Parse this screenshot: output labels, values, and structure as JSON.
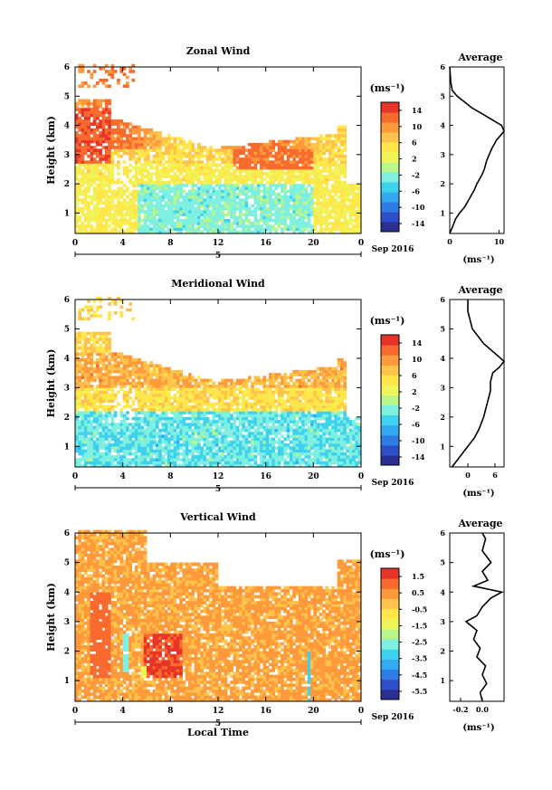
{
  "date_label": "Sep 2016",
  "time_axis_label": "Local Time",
  "day_marker": "5",
  "units_label": "(ms⁻¹)",
  "height_label": "Height (km)",
  "avg_title": "Average",
  "colors": [
    "#2b2f8f",
    "#2c4fc8",
    "#2f7be6",
    "#33a9f0",
    "#3fd2ee",
    "#7ff0e0",
    "#b8f58a",
    "#eef55a",
    "#ffe64a",
    "#ffc24a",
    "#ff9a3c",
    "#f86a2e",
    "#e83428"
  ],
  "chart_data": [
    {
      "type": "heatmap",
      "title": "Zonal Wind",
      "xlabel": "",
      "ylabel": "Height (km)",
      "xlim": [
        0,
        24
      ],
      "ylim": [
        0.3,
        6.0
      ],
      "x_ticks": [
        "0",
        "4",
        "8",
        "12",
        "16",
        "20",
        "0"
      ],
      "y_ticks": [
        "1",
        "2",
        "3",
        "4",
        "5",
        "6"
      ],
      "colorbar": {
        "label": "(ms⁻¹)",
        "min": -16,
        "max": 16,
        "ticks": [
          "14",
          "10",
          "6",
          "2",
          "-2",
          "-6",
          "-10",
          "-14"
        ]
      },
      "average": {
        "title": "Average",
        "xlabel": "(ms⁻¹)",
        "xlim": [
          0,
          11
        ],
        "x_ticks": [
          {
            "v": 0,
            "t": "0"
          },
          {
            "v": 10,
            "t": "10"
          }
        ],
        "profile": [
          [
            0.3,
            0.0
          ],
          [
            0.5,
            0.5
          ],
          [
            0.8,
            1.2
          ],
          [
            1.0,
            2.0
          ],
          [
            1.2,
            3.0
          ],
          [
            1.5,
            4.0
          ],
          [
            1.8,
            5.0
          ],
          [
            2.0,
            5.5
          ],
          [
            2.3,
            6.5
          ],
          [
            2.5,
            7.0
          ],
          [
            2.8,
            7.5
          ],
          [
            3.0,
            8.0
          ],
          [
            3.2,
            8.5
          ],
          [
            3.5,
            9.5
          ],
          [
            3.8,
            11.0
          ],
          [
            4.0,
            10.5
          ],
          [
            4.2,
            8.5
          ],
          [
            4.4,
            6.5
          ],
          [
            4.6,
            4.5
          ],
          [
            4.8,
            3.0
          ],
          [
            5.0,
            1.5
          ],
          [
            5.2,
            0.5
          ],
          [
            5.5,
            0.2
          ],
          [
            6.0,
            0.0
          ]
        ]
      }
    },
    {
      "type": "heatmap",
      "title": "Meridional Wind",
      "xlabel": "",
      "ylabel": "Height (km)",
      "xlim": [
        0,
        24
      ],
      "ylim": [
        0.3,
        6.0
      ],
      "x_ticks": [
        "0",
        "4",
        "8",
        "12",
        "16",
        "20",
        "0"
      ],
      "y_ticks": [
        "1",
        "2",
        "3",
        "4",
        "5",
        "6"
      ],
      "colorbar": {
        "label": "(ms⁻¹)",
        "min": -16,
        "max": 16,
        "ticks": [
          "14",
          "10",
          "6",
          "2",
          "-2",
          "-6",
          "-10",
          "-14"
        ]
      },
      "average": {
        "title": "Average",
        "xlabel": "(ms⁻¹)",
        "xlim": [
          -4,
          8
        ],
        "x_ticks": [
          {
            "v": 0,
            "t": "0"
          },
          {
            "v": 6,
            "t": "6"
          }
        ],
        "profile": [
          [
            0.3,
            -3.5
          ],
          [
            0.5,
            -2.5
          ],
          [
            0.8,
            -1.0
          ],
          [
            1.0,
            0.0
          ],
          [
            1.3,
            1.5
          ],
          [
            1.6,
            2.5
          ],
          [
            2.0,
            3.5
          ],
          [
            2.3,
            4.0
          ],
          [
            2.6,
            4.5
          ],
          [
            2.9,
            5.0
          ],
          [
            3.2,
            5.0
          ],
          [
            3.5,
            5.5
          ],
          [
            3.7,
            7.0
          ],
          [
            3.9,
            8.0
          ],
          [
            4.1,
            6.5
          ],
          [
            4.3,
            5.0
          ],
          [
            4.5,
            3.5
          ],
          [
            4.8,
            2.0
          ],
          [
            5.0,
            1.0
          ],
          [
            5.3,
            0.5
          ],
          [
            5.6,
            0.0
          ],
          [
            6.0,
            0.0
          ]
        ]
      }
    },
    {
      "type": "heatmap",
      "title": "Vertical Wind",
      "xlabel": "Local Time",
      "ylabel": "Height (km)",
      "xlim": [
        0,
        24
      ],
      "ylim": [
        0.3,
        6.0
      ],
      "x_ticks": [
        "0",
        "4",
        "8",
        "12",
        "16",
        "20",
        "0"
      ],
      "y_ticks": [
        "1",
        "2",
        "3",
        "4",
        "5",
        "6"
      ],
      "colorbar": {
        "label": "(ms⁻¹)",
        "min": -6,
        "max": 2,
        "ticks": [
          "1.5",
          "0.5",
          "-0.5",
          "-1.5",
          "-2.5",
          "-3.5",
          "-4.5",
          "-5.5"
        ]
      },
      "average": {
        "title": "Average",
        "xlabel": "(ms⁻¹)",
        "xlim": [
          -0.3,
          0.2
        ],
        "x_ticks": [
          {
            "v": -0.2,
            "t": "-0.2"
          },
          {
            "v": 0.0,
            "t": "0.0"
          }
        ],
        "profile": [
          [
            0.3,
            0.0
          ],
          [
            0.6,
            -0.02
          ],
          [
            0.9,
            0.04
          ],
          [
            1.2,
            0.0
          ],
          [
            1.5,
            0.03
          ],
          [
            1.8,
            -0.05
          ],
          [
            2.1,
            -0.02
          ],
          [
            2.4,
            -0.08
          ],
          [
            2.7,
            -0.05
          ],
          [
            3.0,
            -0.15
          ],
          [
            3.2,
            -0.05
          ],
          [
            3.5,
            0.0
          ],
          [
            3.8,
            0.08
          ],
          [
            4.0,
            0.18
          ],
          [
            4.2,
            -0.08
          ],
          [
            4.4,
            0.05
          ],
          [
            4.7,
            0.0
          ],
          [
            5.0,
            0.08
          ],
          [
            5.4,
            0.0
          ],
          [
            5.8,
            0.03
          ],
          [
            6.0,
            0.0
          ]
        ]
      }
    }
  ]
}
